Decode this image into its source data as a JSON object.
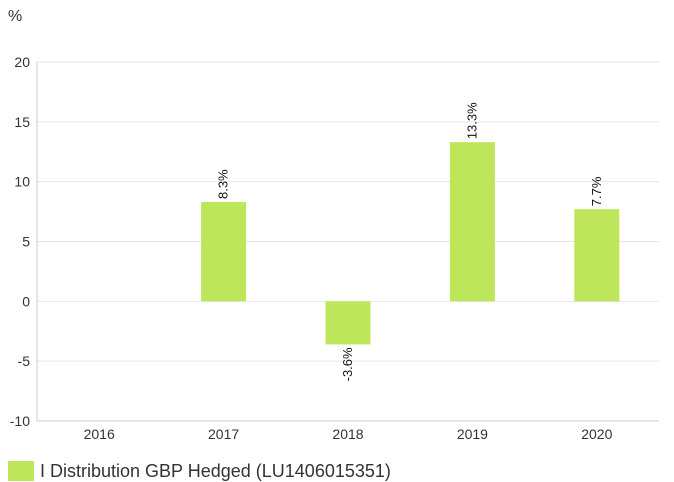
{
  "chart_data": {
    "type": "bar",
    "ylabel": "%",
    "categories": [
      "2016",
      "2017",
      "2018",
      "2019",
      "2020"
    ],
    "series": [
      {
        "name": "I Distribution GBP Hedged (LU1406015351)",
        "values": [
          null,
          8.3,
          -3.6,
          13.3,
          7.7
        ],
        "labels": [
          "",
          "8.3%",
          "-3.6%",
          "13.3%",
          "7.7%"
        ]
      }
    ],
    "ylim": [
      -10,
      20
    ],
    "yticks": [
      "-10",
      "-5",
      "0",
      "5",
      "10",
      "15",
      "20"
    ],
    "grid": true,
    "legend_position": "bottom-left"
  },
  "colors": {
    "bar": "#bde65a",
    "grid": "#e6e6e6",
    "axis": "#cccccc"
  }
}
